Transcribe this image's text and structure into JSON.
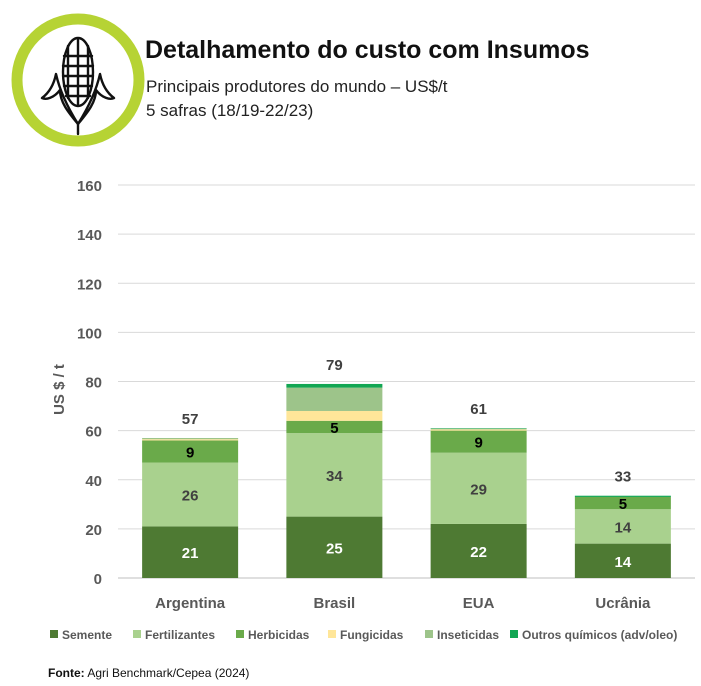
{
  "header": {
    "title": "Detalhamento do custo com Insumos",
    "subtitle_line1": "Principais produtores do mundo – US$/t",
    "subtitle_line2": "5 safras (18/19-22/23)",
    "logo_icon": "corn-icon"
  },
  "source": {
    "label": "Fonte:",
    "text": " Agri Benchmark/Cepea (2024)"
  },
  "colors": {
    "Semente": "#4e7a33",
    "Fertilizantes": "#a9d18e",
    "Herbicidas": "#6aaa4a",
    "Fungicidas": "#ffe699",
    "Inseticidas": "#9dc48a",
    "Outros químicos (adv/oleo)": "#12a653",
    "logo_ring": "#b6d334",
    "axis_text": "#595959",
    "grid": "#d9d9d9"
  },
  "chart_data": {
    "type": "bar",
    "stacked": true,
    "categories": [
      "Argentina",
      "Brasil",
      "EUA",
      "Ucrânia"
    ],
    "ylabel": "US $ / t",
    "ylim": [
      0,
      160
    ],
    "yticks": [
      0,
      20,
      40,
      60,
      80,
      100,
      120,
      140,
      160
    ],
    "grid": true,
    "legend_position": "bottom",
    "series": [
      {
        "name": "Semente",
        "values": [
          21,
          25,
          22,
          14
        ],
        "labels": [
          "21",
          "25",
          "22",
          "14"
        ],
        "label_color": "#ffffff"
      },
      {
        "name": "Fertilizantes",
        "values": [
          26,
          34,
          29,
          14
        ],
        "labels": [
          "26",
          "34",
          "29",
          "14"
        ],
        "label_color": "#404040"
      },
      {
        "name": "Herbicidas",
        "values": [
          9,
          5,
          9,
          5
        ],
        "labels": [
          "9",
          "5",
          "9",
          "5"
        ],
        "label_color": "#000000"
      },
      {
        "name": "Fungicidas",
        "values": [
          0.5,
          4,
          0.5,
          0
        ],
        "labels": [
          "",
          "",
          "",
          ""
        ],
        "label_color": "#000000"
      },
      {
        "name": "Inseticidas",
        "values": [
          0.5,
          9.5,
          0.3,
          0
        ],
        "labels": [
          "",
          "",
          "",
          ""
        ],
        "label_color": "#000000"
      },
      {
        "name": "Outros químicos (adv/oleo)",
        "values": [
          0,
          1.5,
          0.2,
          0.5
        ],
        "labels": [
          "",
          "",
          "",
          ""
        ],
        "label_color": "#000000"
      }
    ],
    "totals": [
      57,
      79,
      61,
      33
    ]
  }
}
